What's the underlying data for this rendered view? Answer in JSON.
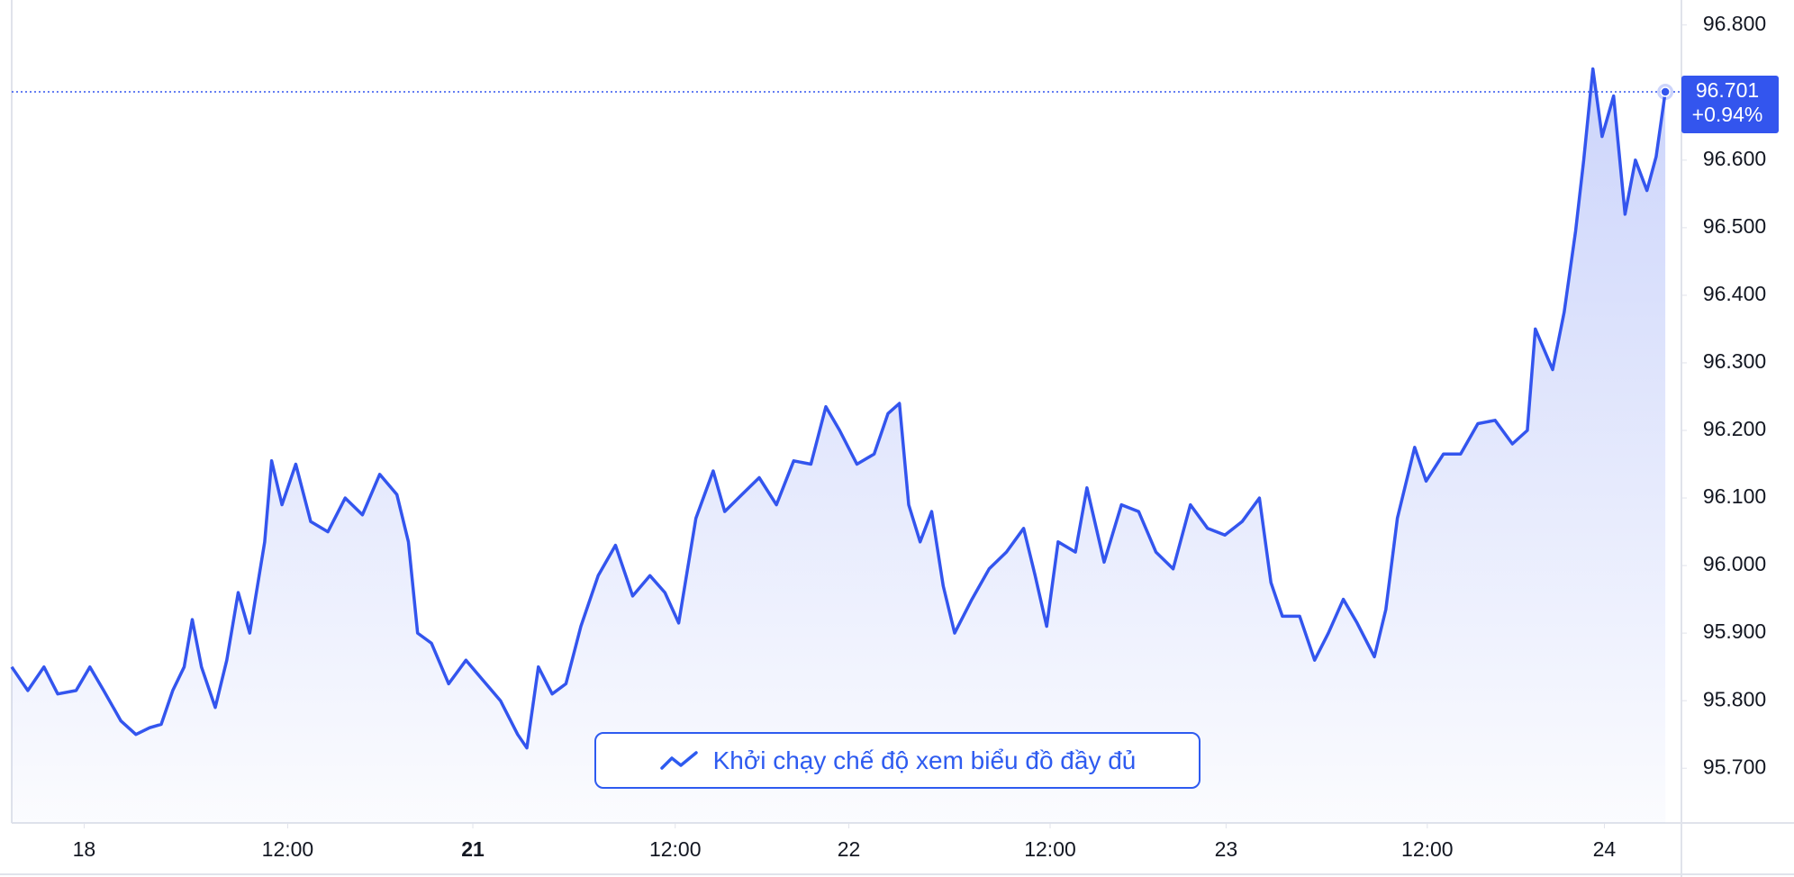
{
  "chart_data": {
    "type": "line",
    "series": [
      {
        "color": "#3355ee",
        "x": [
          0,
          1.4,
          2.8,
          4,
          5.6,
          6.8,
          8,
          9.5,
          10.8,
          12,
          13,
          14,
          15,
          15.7,
          16.5,
          17.7,
          18.7,
          19.7,
          20.7,
          22,
          22.6,
          23.5,
          24.7,
          26,
          27.5,
          29,
          30.5,
          32,
          33.5,
          34.5,
          35.3,
          36.5,
          38,
          39.5,
          41,
          42.5,
          44,
          44.8,
          45.8,
          47,
          48.2,
          49.5,
          51,
          52.5,
          54,
          55.5,
          56.8,
          58,
          59.5,
          61,
          62,
          63.5,
          65,
          66.5,
          68,
          69.5,
          70.8,
          72,
          73.5,
          75,
          76.2,
          77.2,
          78,
          79,
          80,
          81,
          82,
          83.5,
          85,
          86.5,
          88,
          89,
          90,
          91,
          92.5,
          93.5,
          95,
          96.5,
          98,
          99.5,
          101,
          102.5,
          104,
          105.5,
          107,
          108.5,
          109.5,
          110.5,
          112,
          113.3,
          114.5,
          115.8,
          117,
          118.5,
          119.5,
          120.5,
          122,
          123,
          124.5,
          126,
          127.5,
          129,
          130.5,
          131.8,
          132.5,
          134,
          135,
          136,
          136.7,
          137.5,
          138.3,
          139.3,
          140.3,
          141.2,
          142.2,
          143,
          143.8
        ],
        "values": [
          95.85,
          95.815,
          95.85,
          95.81,
          95.815,
          95.85,
          95.815,
          95.77,
          95.75,
          95.76,
          95.765,
          95.815,
          95.85,
          95.92,
          95.85,
          95.79,
          95.86,
          95.96,
          95.9,
          96.035,
          96.155,
          96.09,
          96.15,
          96.065,
          96.05,
          96.1,
          96.075,
          96.135,
          96.105,
          96.035,
          95.9,
          95.885,
          95.825,
          95.86,
          95.83,
          95.8,
          95.75,
          95.73,
          95.85,
          95.81,
          95.825,
          95.91,
          95.985,
          96.03,
          95.955,
          95.985,
          95.96,
          95.915,
          96.07,
          96.14,
          96.08,
          96.105,
          96.13,
          96.09,
          96.155,
          96.15,
          96.235,
          96.2,
          96.15,
          96.165,
          96.225,
          96.24,
          96.09,
          96.035,
          96.08,
          95.97,
          95.9,
          95.95,
          95.995,
          96.02,
          96.055,
          95.985,
          95.91,
          96.035,
          96.02,
          96.115,
          96.005,
          96.09,
          96.08,
          96.02,
          95.995,
          96.09,
          96.055,
          96.045,
          96.065,
          96.1,
          95.975,
          95.925,
          95.925,
          95.86,
          95.9,
          95.95,
          95.915,
          95.865,
          95.935,
          96.07,
          96.175,
          96.125,
          96.165,
          96.165,
          96.21,
          96.215,
          96.18,
          96.2,
          96.35,
          96.29,
          96.375,
          96.495,
          96.6,
          96.735,
          96.635,
          96.695,
          96.52,
          96.6,
          96.555,
          96.605,
          96.701
        ]
      }
    ],
    "xlim": [
      0,
      145.2
    ],
    "xticks": [
      {
        "value": 6.3,
        "label": "18"
      },
      {
        "value": 24,
        "label": "12:00"
      },
      {
        "value": 40.1,
        "label": "21"
      },
      {
        "value": 57.7,
        "label": "12:00"
      },
      {
        "value": 72.8,
        "label": "22"
      },
      {
        "value": 90.3,
        "label": "12:00"
      },
      {
        "value": 105.6,
        "label": "23"
      },
      {
        "value": 123.1,
        "label": "12:00"
      },
      {
        "value": 138.5,
        "label": "24"
      }
    ],
    "ylim": [
      95.619,
      96.837
    ],
    "yticks": [
      {
        "value": 95.7,
        "label": "95.700"
      },
      {
        "value": 95.8,
        "label": "95.800"
      },
      {
        "value": 95.9,
        "label": "95.900"
      },
      {
        "value": 96.0,
        "label": "96.000"
      },
      {
        "value": 96.1,
        "label": "96.100"
      },
      {
        "value": 96.2,
        "label": "96.200"
      },
      {
        "value": 96.3,
        "label": "96.300"
      },
      {
        "value": 96.4,
        "label": "96.400"
      },
      {
        "value": 96.5,
        "label": "96.500"
      },
      {
        "value": 96.6,
        "label": "96.600"
      },
      {
        "value": 96.7,
        "label": "96.700"
      },
      {
        "value": 96.8,
        "label": "96.800"
      }
    ],
    "last_price": {
      "value": 96.701,
      "label": "96.701",
      "change": 0.94,
      "change_label": "+0.94%"
    },
    "button": "Khởi chạy chế độ xem biểu đồ đầy đủ"
  }
}
